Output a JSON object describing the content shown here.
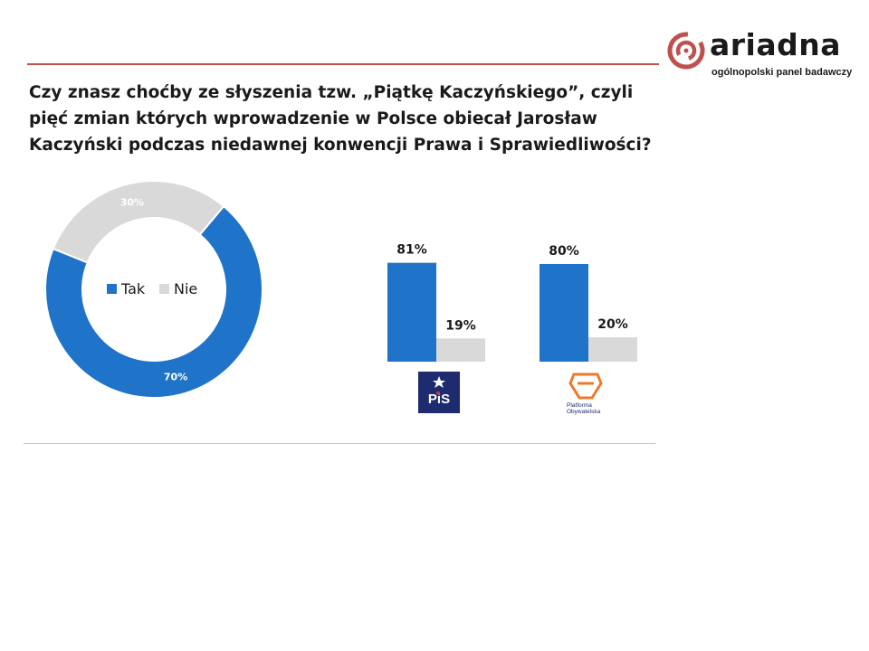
{
  "brand": {
    "name": "ariadna",
    "tagline": "ogólnopolski panel badawczy",
    "accent": "#c0504d"
  },
  "question": "Czy znasz choćby ze słyszenia tzw. „Piątkę Kaczyńskiego”, czyli pięć zmian których wprowadzenie w Polsce obiecał Jarosław Kaczyński podczas niedawnej konwencji Prawa i Sprawiedliwości?",
  "colors": {
    "yes": "#1f73c8",
    "no": "#d9d9d9"
  },
  "chart_data": [
    {
      "type": "pie",
      "donut": true,
      "legend": [
        "Tak",
        "Nie"
      ],
      "legend_position": "center",
      "slices": [
        {
          "label": "Tak",
          "value": 70,
          "display": "70%"
        },
        {
          "label": "Nie",
          "value": 30,
          "display": "30%"
        }
      ]
    },
    {
      "type": "bar",
      "categories": [
        "PiS",
        "Platforma Obywatelska"
      ],
      "series": [
        {
          "name": "Tak",
          "values": [
            81,
            80
          ],
          "labels": [
            "81%",
            "80%"
          ]
        },
        {
          "name": "Nie",
          "values": [
            19,
            20
          ],
          "labels": [
            "19%",
            "20%"
          ]
        }
      ],
      "ylim": [
        0,
        100
      ],
      "grid": false
    }
  ],
  "party_logos": [
    {
      "name": "pis-logo",
      "text": "PiS"
    },
    {
      "name": "po-logo",
      "text": "Platforma Obywatelska"
    }
  ]
}
